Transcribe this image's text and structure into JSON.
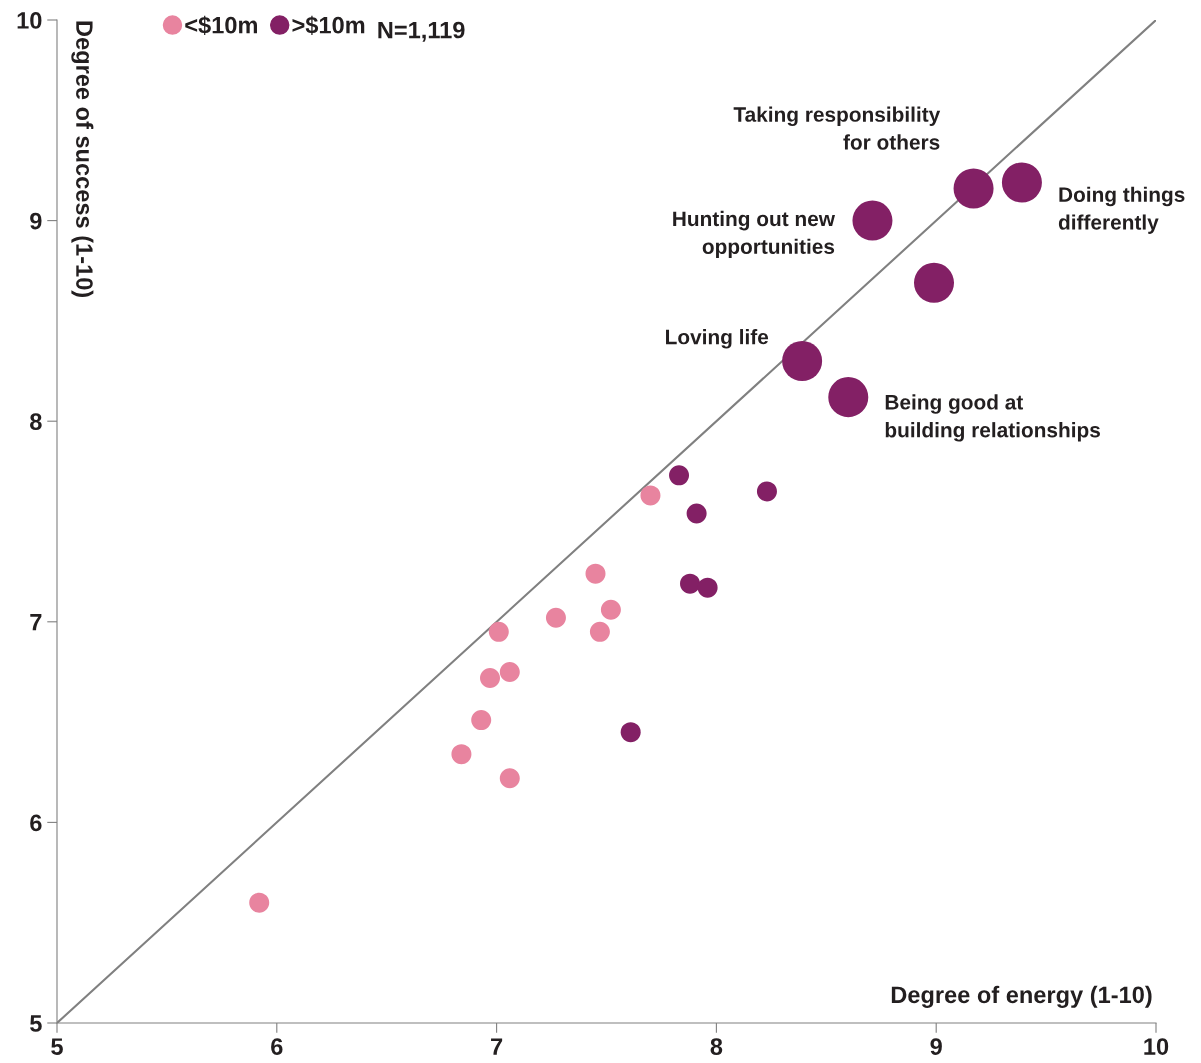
{
  "chart_data": {
    "type": "bubble",
    "xlabel": "Degree of energy (1-10)",
    "ylabel": "Degree of success (1-10)",
    "xlim": [
      5,
      10
    ],
    "ylim": [
      5,
      10
    ],
    "xticks": [
      5,
      6,
      7,
      8,
      9,
      10
    ],
    "yticks": [
      5,
      6,
      7,
      8,
      9,
      10
    ],
    "grid": false,
    "legend": "top left",
    "marker": "circle",
    "series": [
      {
        "name": "<$10m",
        "color": "#e8849f",
        "x": [
          5.92,
          6.84,
          6.93,
          6.97,
          7.06,
          7.01,
          7.06,
          7.27,
          7.45,
          7.52,
          7.47,
          7.7
        ],
        "values": [
          5.6,
          6.34,
          6.51,
          6.72,
          6.75,
          6.95,
          6.22,
          7.02,
          7.24,
          7.06,
          6.95,
          7.63
        ],
        "sizes": [
          0.25,
          0.25,
          0.25,
          0.25,
          0.25,
          0.25,
          0.25,
          0.25,
          0.25,
          0.25,
          0.25,
          0.25
        ]
      },
      {
        "name": ">$10m",
        "color": "#832065",
        "x": [
          7.83,
          8.23,
          7.91,
          7.88,
          7.96,
          7.61,
          8.71,
          9.17,
          9.39,
          8.99,
          8.39,
          8.6
        ],
        "values": [
          7.73,
          7.65,
          7.54,
          7.19,
          7.17,
          6.45,
          9.0,
          9.16,
          9.19,
          8.69,
          8.3,
          8.12
        ],
        "sizes": [
          0.25,
          0.25,
          0.25,
          0.25,
          0.25,
          0.25,
          1,
          1,
          1,
          1,
          1,
          1
        ]
      },
      {
        "type": "line",
        "color": "#808080",
        "x": [
          5,
          10
        ],
        "values": [
          5,
          10
        ],
        "marker": "none"
      }
    ],
    "annotations": [
      {
        "text": "Taking responsibility\nfor others",
        "x": 9.17,
        "y": 9.16
      },
      {
        "text": "Doing things\ndifferently",
        "x": 9.39,
        "y": 9.19
      },
      {
        "text": "Hunting out new\nopportunities",
        "x": 8.71,
        "y": 9.0
      },
      {
        "text": "Loving life",
        "x": 8.39,
        "y": 8.3
      },
      {
        "text": "Being good at\nbuilding relationships",
        "x": 8.6,
        "y": 8.12
      },
      "N=1,119"
    ]
  }
}
